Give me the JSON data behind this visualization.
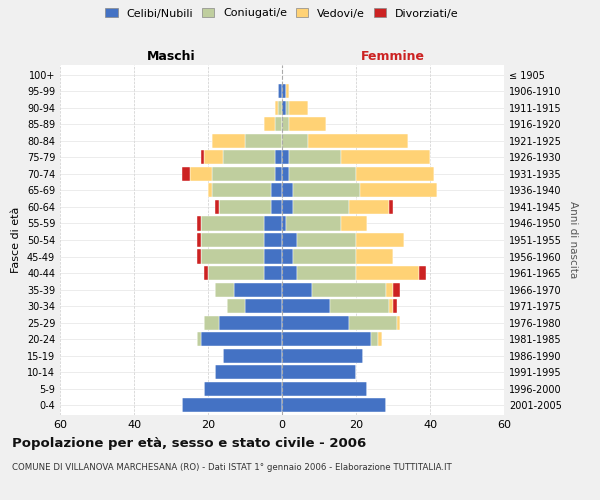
{
  "age_groups": [
    "0-4",
    "5-9",
    "10-14",
    "15-19",
    "20-24",
    "25-29",
    "30-34",
    "35-39",
    "40-44",
    "45-49",
    "50-54",
    "55-59",
    "60-64",
    "65-69",
    "70-74",
    "75-79",
    "80-84",
    "85-89",
    "90-94",
    "95-99",
    "100+"
  ],
  "birth_years": [
    "2001-2005",
    "1996-2000",
    "1991-1995",
    "1986-1990",
    "1981-1985",
    "1976-1980",
    "1971-1975",
    "1966-1970",
    "1961-1965",
    "1956-1960",
    "1951-1955",
    "1946-1950",
    "1941-1945",
    "1936-1940",
    "1931-1935",
    "1926-1930",
    "1921-1925",
    "1916-1920",
    "1911-1915",
    "1906-1910",
    "≤ 1905"
  ],
  "males": {
    "celibi": [
      27,
      21,
      18,
      16,
      22,
      17,
      10,
      13,
      5,
      5,
      5,
      5,
      3,
      3,
      2,
      2,
      0,
      0,
      0,
      1,
      0
    ],
    "coniugati": [
      0,
      0,
      0,
      0,
      1,
      4,
      5,
      5,
      15,
      17,
      17,
      17,
      14,
      16,
      17,
      14,
      10,
      2,
      1,
      0,
      0
    ],
    "vedovi": [
      0,
      0,
      0,
      0,
      0,
      0,
      0,
      0,
      0,
      0,
      0,
      0,
      0,
      1,
      6,
      5,
      9,
      3,
      1,
      0,
      0
    ],
    "divorziati": [
      0,
      0,
      0,
      0,
      0,
      0,
      0,
      0,
      1,
      1,
      1,
      1,
      1,
      0,
      2,
      1,
      0,
      0,
      0,
      0,
      0
    ]
  },
  "females": {
    "nubili": [
      28,
      23,
      20,
      22,
      24,
      18,
      13,
      8,
      4,
      3,
      4,
      1,
      3,
      3,
      2,
      2,
      0,
      0,
      1,
      1,
      0
    ],
    "coniugate": [
      0,
      0,
      0,
      0,
      2,
      13,
      16,
      20,
      16,
      17,
      16,
      15,
      15,
      18,
      18,
      14,
      7,
      2,
      1,
      0,
      0
    ],
    "vedove": [
      0,
      0,
      0,
      0,
      1,
      1,
      1,
      2,
      17,
      10,
      13,
      7,
      11,
      21,
      21,
      24,
      27,
      10,
      5,
      1,
      0
    ],
    "divorziate": [
      0,
      0,
      0,
      0,
      0,
      0,
      1,
      2,
      2,
      0,
      0,
      0,
      1,
      0,
      0,
      0,
      0,
      0,
      0,
      0,
      0
    ]
  },
  "colors": {
    "celibi": "#4472C4",
    "coniugati": "#BFCE9E",
    "vedovi": "#FFD275",
    "divorziati": "#CC2222"
  },
  "xlim": 60,
  "title": "Popolazione per età, sesso e stato civile - 2006",
  "subtitle": "COMUNE DI VILLANOVA MARCHESANA (RO) - Dati ISTAT 1° gennaio 2006 - Elaborazione TUTTITALIA.IT",
  "xlabel_left": "Maschi",
  "xlabel_right": "Femmine",
  "ylabel_left": "Fasce di età",
  "ylabel_right": "Anni di nascita",
  "legend_labels": [
    "Celibi/Nubili",
    "Coniugati/e",
    "Vedovi/e",
    "Divorziati/e"
  ],
  "bg_color": "#f0f0f0",
  "plot_bg_color": "#ffffff"
}
